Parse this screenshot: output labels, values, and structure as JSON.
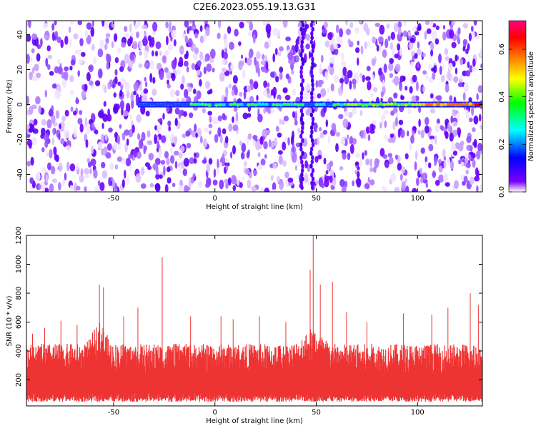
{
  "figure": {
    "title": "C2E6.2023.055.19.13.G31"
  },
  "chart_data": [
    {
      "type": "heatmap",
      "xlabel": "Height of straight line (km)",
      "ylabel": "Frequency (Hz)",
      "xlim": [
        -93,
        132
      ],
      "ylim": [
        -50,
        48
      ],
      "x_ticks": [
        -50,
        0,
        50,
        100
      ],
      "x_tick_labels": [
        "-50",
        "0",
        "50",
        "100"
      ],
      "y_ticks": [
        -40,
        -20,
        0,
        20,
        40
      ],
      "y_tick_labels": [
        "-40",
        "-20",
        "0",
        "20",
        "40"
      ],
      "grid": false,
      "colorbar": {
        "label": "Normalized spectral amplitude",
        "range": [
          0.0,
          0.72
        ],
        "ticks": [
          0.0,
          0.2,
          0.4,
          0.6
        ],
        "tick_labels": [
          "0.0",
          "0.2",
          "0.4",
          "0.6"
        ],
        "colormap": [
          "#ffffff",
          "#7a00ff",
          "#0000ff",
          "#00ffff",
          "#00ff00",
          "#ffff00",
          "#ff8000",
          "#ff0000",
          "#ff0080"
        ]
      },
      "features": {
        "horizontal_line_frequency_hz": 0,
        "line_start_km": -38,
        "line_end_km": 132,
        "vertical_streak_km": [
          43,
          48
        ]
      }
    },
    {
      "type": "line",
      "xlabel": "Height of straight line (km)",
      "ylabel": "SNR (10 * v/v)",
      "xlim": [
        -93,
        132
      ],
      "ylim": [
        20,
        1200
      ],
      "x_ticks": [
        -50,
        0,
        50,
        100
      ],
      "x_tick_labels": [
        "-50",
        "0",
        "50",
        "100"
      ],
      "y_ticks": [
        200,
        400,
        600,
        800,
        1000,
        1200
      ],
      "y_tick_labels": [
        "200",
        "400",
        "600",
        "800",
        "1000",
        "1200"
      ],
      "grid": false,
      "series": [
        {
          "color": "#ee3333",
          "baseline_range": [
            80,
            450
          ],
          "peaks": [
            {
              "x": -90,
              "y": 520
            },
            {
              "x": -84,
              "y": 560
            },
            {
              "x": -76,
              "y": 610
            },
            {
              "x": -68,
              "y": 580
            },
            {
              "x": -57,
              "y": 860
            },
            {
              "x": -55,
              "y": 840
            },
            {
              "x": -45,
              "y": 640
            },
            {
              "x": -38,
              "y": 700
            },
            {
              "x": -26,
              "y": 1050
            },
            {
              "x": -12,
              "y": 640
            },
            {
              "x": 3,
              "y": 640
            },
            {
              "x": 9,
              "y": 620
            },
            {
              "x": 22,
              "y": 640
            },
            {
              "x": 35,
              "y": 600
            },
            {
              "x": 47,
              "y": 960
            },
            {
              "x": 48.5,
              "y": 1200
            },
            {
              "x": 52,
              "y": 860
            },
            {
              "x": 58,
              "y": 880
            },
            {
              "x": 65,
              "y": 670
            },
            {
              "x": 75,
              "y": 600
            },
            {
              "x": 93,
              "y": 660
            },
            {
              "x": 107,
              "y": 650
            },
            {
              "x": 115,
              "y": 700
            },
            {
              "x": 126,
              "y": 800
            },
            {
              "x": 130,
              "y": 720
            }
          ]
        }
      ]
    }
  ]
}
